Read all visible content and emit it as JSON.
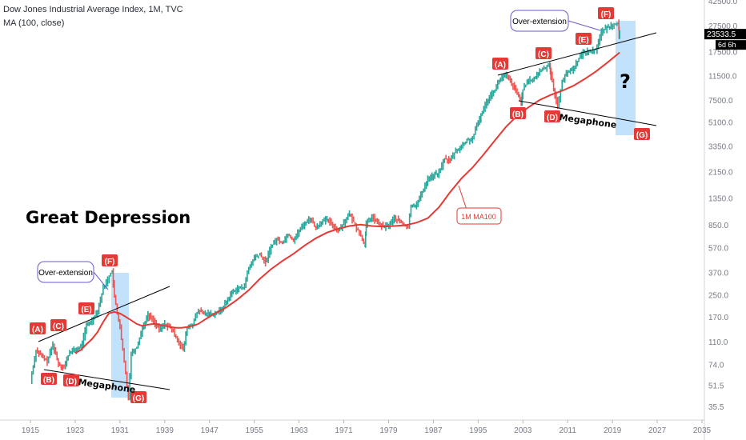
{
  "header": {
    "symbol_title": "Dow Jones Industrial Average Index, 1M, TVC",
    "indicator": "MA (100, close)"
  },
  "price_axis": {
    "tick_labels": [
      "42500.0",
      "27500.0",
      "17500.0",
      "11500.0",
      "7500.0",
      "5100.0",
      "3350.0",
      "2150.0",
      "1350.0",
      "850.0",
      "570.0",
      "370.0",
      "250.0",
      "170.0",
      "110.0",
      "74.0",
      "51.5",
      "35.5"
    ],
    "tick_values": [
      42500,
      27500,
      17500,
      11500,
      7500,
      5100,
      3350,
      2150,
      1350,
      850,
      570,
      370,
      250,
      170,
      110,
      74,
      51.5,
      35.5
    ],
    "current_price": "23533.5",
    "countdown": "6d 6h",
    "price_tag_color": "#26a69a"
  },
  "time_axis": {
    "tick_labels": [
      "1915",
      "1923",
      "1931",
      "1939",
      "1947",
      "1955",
      "1963",
      "1971",
      "1979",
      "1987",
      "1995",
      "2003",
      "2011",
      "2019",
      "2027",
      "2035"
    ],
    "tick_values": [
      1915,
      1923,
      1931,
      1939,
      1947,
      1955,
      1963,
      1971,
      1979,
      1987,
      1995,
      2003,
      2011,
      2019,
      2027,
      2035
    ]
  },
  "annotations": {
    "great_depression": "Great Depression",
    "question": "?",
    "ma_label": "1M MA100",
    "megaphone_old": "Megaphone",
    "megaphone_new": "Megaphone",
    "overext_old": "Over-extension",
    "overext_new": "Over-extension",
    "labels_old": [
      "(A)",
      "(B)",
      "(C)",
      "(D)",
      "(E)",
      "(F)",
      "(G)"
    ],
    "labels_new": [
      "(A)",
      "(B)",
      "(C)",
      "(D)",
      "(E)",
      "(F)",
      "(G)"
    ]
  },
  "colors": {
    "candle_up": "#26a69a",
    "candle_down": "#ef5350",
    "ma_line": "#e53935",
    "label_box": "#e53935",
    "highlight": "#90caf9",
    "trendline": "#000000"
  },
  "chart_data": {
    "type": "line",
    "title": "Dow Jones Industrial Average Index, 1M, TVC",
    "y_scale": "log",
    "xlim": [
      1913,
      2038
    ],
    "ylim": [
      30,
      45000
    ],
    "series": [
      {
        "name": "Dow Jones Industrial Average Index",
        "x": [
          1915,
          1916,
          1917,
          1918,
          1919,
          1920,
          1921,
          1922,
          1923,
          1924,
          1925,
          1926,
          1927,
          1928,
          1929.6,
          1930,
          1931,
          1932.5,
          1933,
          1934,
          1935,
          1936,
          1937,
          1938,
          1939,
          1940,
          1941,
          1942.3,
          1943,
          1944,
          1945,
          1946,
          1947,
          1948,
          1949,
          1950,
          1951,
          1952,
          1953,
          1954,
          1955,
          1956,
          1957,
          1958,
          1959,
          1960,
          1961,
          1962,
          1963,
          1964,
          1965,
          1966,
          1967,
          1968,
          1969,
          1970,
          1971,
          1972,
          1973,
          1974.8,
          1975,
          1976,
          1977,
          1978,
          1979,
          1980,
          1981,
          1982.5,
          1983,
          1984,
          1985,
          1986,
          1987,
          1988,
          1989,
          1990,
          1991,
          1992,
          1993,
          1994,
          1995,
          1996,
          1997,
          1998,
          1999,
          2000,
          2001,
          2002.7,
          2003,
          2004,
          2005,
          2006,
          2007.8,
          2008,
          2009.2,
          2010,
          2011,
          2012,
          2013,
          2014,
          2015,
          2016,
          2017,
          2018,
          2019,
          2020.1,
          2020.2,
          2020.3
        ],
        "values": [
          55,
          95,
          85,
          78,
          105,
          75,
          70,
          92,
          95,
          100,
          145,
          160,
          190,
          280,
          381,
          240,
          140,
          42,
          90,
          100,
          140,
          175,
          160,
          135,
          150,
          140,
          120,
          95,
          140,
          150,
          190,
          180,
          180,
          180,
          190,
          220,
          260,
          280,
          280,
          390,
          480,
          500,
          440,
          580,
          660,
          620,
          720,
          650,
          760,
          870,
          950,
          800,
          900,
          920,
          850,
          760,
          890,
          1020,
          850,
          600,
          850,
          980,
          880,
          820,
          840,
          950,
          900,
          800,
          1200,
          1200,
          1500,
          1900,
          2000,
          2100,
          2700,
          2600,
          3100,
          3300,
          3700,
          3800,
          5100,
          6500,
          8000,
          9000,
          11000,
          11500,
          10000,
          7300,
          9000,
          10500,
          10800,
          12400,
          14000,
          11500,
          6600,
          10500,
          12200,
          13000,
          15500,
          17500,
          17500,
          18000,
          24500,
          26500,
          28000,
          29000,
          22000,
          23533.5
        ]
      },
      {
        "name": "1M MA100",
        "x": [
          1923,
          1924,
          1925,
          1926,
          1927,
          1928,
          1929,
          1930,
          1931,
          1932,
          1933,
          1934,
          1935,
          1936,
          1937,
          1938,
          1939,
          1940,
          1941,
          1942,
          1943,
          1944,
          1945,
          1946,
          1947,
          1948,
          1949,
          1950,
          1952,
          1954,
          1956,
          1958,
          1960,
          1962,
          1964,
          1966,
          1968,
          1970,
          1972,
          1974,
          1976,
          1978,
          1980,
          1982,
          1984,
          1986,
          1988,
          1990,
          1992,
          1994,
          1996,
          1998,
          2000,
          2002,
          2004,
          2006,
          2008,
          2010,
          2012,
          2014,
          2016,
          2018,
          2020.3
        ],
        "values": [
          90,
          95,
          105,
          115,
          130,
          155,
          180,
          185,
          180,
          170,
          160,
          150,
          145,
          148,
          150,
          148,
          145,
          142,
          140,
          140,
          142,
          145,
          150,
          160,
          170,
          180,
          190,
          200,
          230,
          270,
          330,
          390,
          450,
          510,
          590,
          670,
          740,
          790,
          830,
          850,
          830,
          820,
          830,
          840,
          880,
          950,
          1150,
          1500,
          1900,
          2300,
          2900,
          3700,
          4700,
          5700,
          6600,
          7500,
          8200,
          8800,
          9600,
          10800,
          12300,
          14300,
          17200
        ]
      }
    ],
    "annotations": {
      "patterns": [
        "Megaphone",
        "Megaphone"
      ],
      "text": [
        "Great Depression",
        "Over-extension",
        "Over-extension",
        "1M MA100",
        "?"
      ]
    }
  }
}
